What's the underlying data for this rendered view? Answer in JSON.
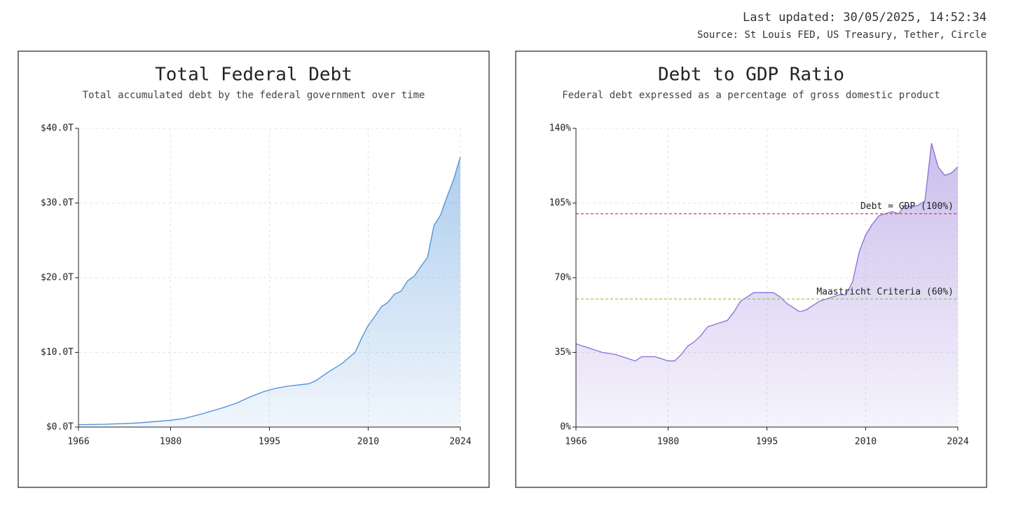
{
  "header": {
    "updated": "Last updated: 30/05/2025, 14:52:34",
    "source": "Source: St Louis FED, US Treasury, Tether, Circle"
  },
  "chart_data": [
    {
      "type": "area",
      "title": "Total Federal Debt",
      "subtitle": "Total accumulated debt by the federal government over time",
      "x": [
        1966,
        1970,
        1975,
        1980,
        1982,
        1985,
        1988,
        1990,
        1992,
        1994,
        1996,
        1998,
        2000,
        2001,
        2002,
        2004,
        2006,
        2008,
        2009,
        2010,
        2011,
        2012,
        2013,
        2014,
        2015,
        2016,
        2017,
        2018,
        2019,
        2020,
        2021,
        2022,
        2023,
        2024
      ],
      "values": [
        0.32,
        0.38,
        0.54,
        0.91,
        1.14,
        1.82,
        2.6,
        3.2,
        4.0,
        4.7,
        5.2,
        5.5,
        5.7,
        5.8,
        6.2,
        7.4,
        8.5,
        10.0,
        11.9,
        13.6,
        14.8,
        16.1,
        16.7,
        17.8,
        18.2,
        19.6,
        20.2,
        21.5,
        22.7,
        27.0,
        28.4,
        30.9,
        33.2,
        36.2
      ],
      "color": "#4a90d9",
      "xlim": [
        1966,
        2024
      ],
      "xticks": [
        1966,
        1980,
        1995,
        2010,
        2024
      ],
      "ylim": [
        0,
        40
      ],
      "yticks": [
        {
          "value": 0,
          "label": "$0.0T"
        },
        {
          "value": 10,
          "label": "$10.0T"
        },
        {
          "value": 20,
          "label": "$20.0T"
        },
        {
          "value": 30,
          "label": "$30.0T"
        },
        {
          "value": 40,
          "label": "$40.0T"
        }
      ],
      "grid": true
    },
    {
      "type": "area",
      "title": "Debt to GDP Ratio",
      "subtitle": "Federal debt expressed as a percentage of gross domestic product",
      "x": [
        1966,
        1967,
        1968,
        1970,
        1972,
        1974,
        1975,
        1976,
        1978,
        1980,
        1981,
        1982,
        1983,
        1984,
        1985,
        1986,
        1987,
        1988,
        1989,
        1990,
        1991,
        1992,
        1993,
        1994,
        1995,
        1996,
        1997,
        1998,
        1999,
        2000,
        2001,
        2002,
        2003,
        2004,
        2005,
        2006,
        2007,
        2008,
        2009,
        2010,
        2011,
        2012,
        2013,
        2014,
        2015,
        2016,
        2017,
        2018,
        2019,
        2020,
        2021,
        2022,
        2023,
        2024
      ],
      "values": [
        39,
        38,
        37,
        35,
        34,
        32,
        31,
        33,
        33,
        31,
        31,
        34,
        38,
        40,
        43,
        47,
        48,
        49,
        50,
        54,
        59,
        61,
        63,
        63,
        63,
        63,
        61,
        58,
        56,
        54,
        55,
        57,
        59,
        60,
        61,
        62,
        62,
        68,
        82,
        90,
        95,
        99,
        100,
        101,
        100,
        104,
        103,
        104,
        106,
        133,
        122,
        118,
        119,
        122
      ],
      "color": "#8a6fd6",
      "xlim": [
        1966,
        2024
      ],
      "xticks": [
        1966,
        1980,
        1995,
        2010,
        2024
      ],
      "ylim": [
        0,
        140
      ],
      "yticks": [
        {
          "value": 0,
          "label": "0%"
        },
        {
          "value": 35,
          "label": "35%"
        },
        {
          "value": 70,
          "label": "70%"
        },
        {
          "value": 105,
          "label": "105%"
        },
        {
          "value": 140,
          "label": "140%"
        }
      ],
      "grid": true,
      "reference_lines": [
        {
          "value": 100,
          "label": "Debt = GDP (100%)",
          "color": "#d9413a"
        },
        {
          "value": 60,
          "label": "Maastricht Criteria (60%)",
          "color": "#8cc63f"
        }
      ]
    }
  ]
}
